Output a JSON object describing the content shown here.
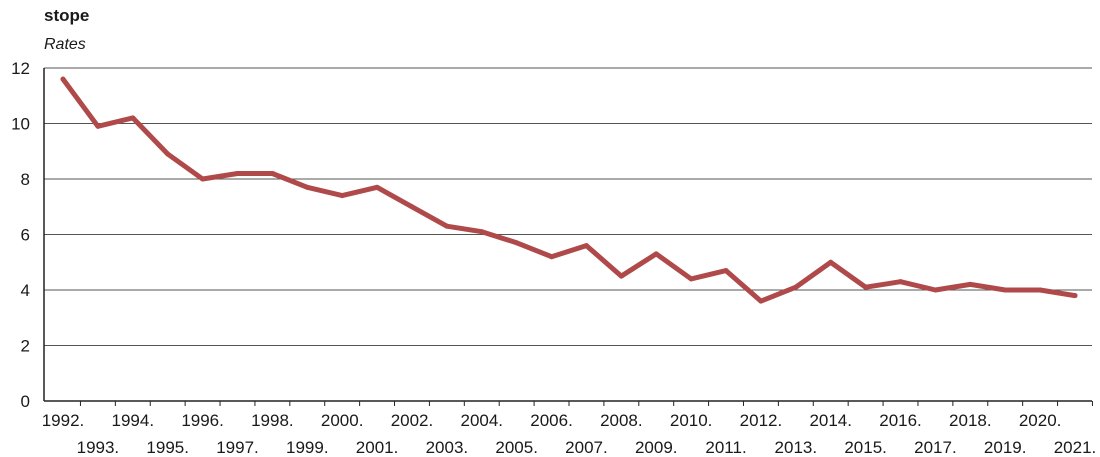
{
  "chart_data": {
    "type": "line",
    "title": "stope",
    "subtitle": "Rates",
    "xlabel": "",
    "ylabel": "",
    "ylim": [
      0,
      12
    ],
    "yticks": [
      0,
      2,
      4,
      6,
      8,
      10,
      12
    ],
    "grid": true,
    "line_color": "#b04a4a",
    "categories": [
      "1992.",
      "1993.",
      "1994.",
      "1995.",
      "1996.",
      "1997.",
      "1998.",
      "1999.",
      "2000.",
      "2001.",
      "2002.",
      "2003.",
      "2004.",
      "2005.",
      "2006.",
      "2007.",
      "2008.",
      "2009.",
      "2010.",
      "2011.",
      "2012.",
      "2013.",
      "2014.",
      "2015.",
      "2016.",
      "2017.",
      "2018.",
      "2019.",
      "2020.",
      "2021."
    ],
    "series": [
      {
        "values": [
          11.6,
          9.9,
          10.2,
          8.9,
          8.0,
          8.2,
          8.2,
          7.7,
          7.4,
          7.7,
          7.0,
          6.3,
          6.1,
          5.7,
          5.2,
          5.6,
          4.5,
          5.3,
          4.4,
          4.7,
          3.6,
          4.1,
          5.0,
          4.1,
          4.3,
          4.0,
          4.2,
          4.0,
          4.0,
          3.8
        ]
      }
    ]
  }
}
